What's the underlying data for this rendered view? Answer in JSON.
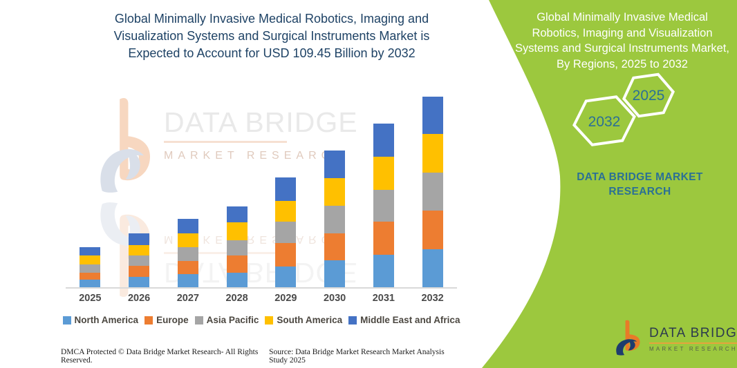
{
  "left": {
    "title": "Global Minimally Invasive Medical Robotics, Imaging and Visualization Systems and Surgical Instruments Market is Expected to Account for USD 109.45 Billion by 2032",
    "title_color": "#1e4265",
    "footer_left": "DMCA Protected © Data Bridge Market Research- All Rights Reserved.",
    "footer_right": "Source: Data Bridge Market Research Market Analysis Study 2025",
    "watermark": {
      "brand": "DATA BRIDGE",
      "sub": "MARKET RESEARCH"
    }
  },
  "right_panel": {
    "bg_color": "#9cc83e",
    "accent_text_color": "#2b7095",
    "title": "Global Minimally Invasive Medical Robotics, Imaging and Visualization Systems and Surgical Instruments Market, By Regions, 2025 to 2032",
    "hexagons": [
      {
        "label": "2032"
      },
      {
        "label": "2025"
      }
    ],
    "caption": "DATA BRIDGE MARKET RESEARCH",
    "logo": {
      "brand": "DATA BRIDGE",
      "sub": "MARKET RESEARCH"
    }
  },
  "chart_data": {
    "type": "bar",
    "stacked": true,
    "unit": "USD Billion",
    "categories": [
      "2025",
      "2026",
      "2027",
      "2028",
      "2029",
      "2030",
      "2031",
      "2032"
    ],
    "series": [
      {
        "name": "North America",
        "color": "#5B9BD5",
        "values": [
          4.3,
          5.8,
          7.4,
          8.4,
          11.7,
          15.3,
          18.7,
          21.9
        ]
      },
      {
        "name": "Europe",
        "color": "#ED7D31",
        "values": [
          4.1,
          6.6,
          7.6,
          9.9,
          13.8,
          15.5,
          18.7,
          22.1
        ]
      },
      {
        "name": "Asia Pacific",
        "color": "#A5A5A5",
        "values": [
          4.6,
          5.9,
          7.9,
          8.6,
          11.9,
          15.8,
          18.4,
          21.7
        ]
      },
      {
        "name": "South America",
        "color": "#FFC000",
        "values": [
          5.3,
          5.9,
          7.9,
          10.5,
          12.1,
          16.1,
          19.1,
          22.0
        ]
      },
      {
        "name": "Middle East and Africa",
        "color": "#4472C4",
        "values": [
          4.6,
          6.8,
          8.2,
          9.1,
          13.2,
          15.5,
          18.8,
          21.7
        ]
      }
    ],
    "totals_by_year": [
      22.9,
      31.0,
      39.0,
      46.5,
      62.7,
      78.2,
      93.7,
      109.45
    ],
    "ylim": [
      0,
      110
    ],
    "grid": false,
    "y_axis_visible": false,
    "legend_position": "bottom"
  }
}
